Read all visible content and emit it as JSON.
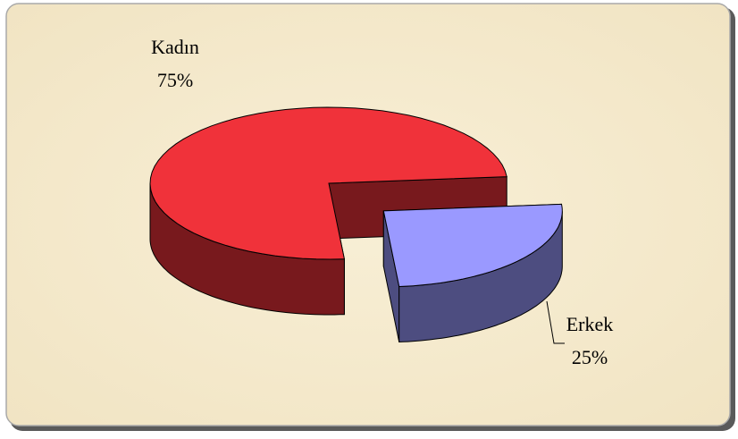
{
  "chart_data": {
    "type": "pie",
    "categories": [
      "Kadın",
      "Erkek"
    ],
    "values": [
      75,
      25
    ],
    "value_labels": [
      "75%",
      "25%"
    ],
    "colors": [
      "#f0323a",
      "#9a99ff"
    ]
  }
}
